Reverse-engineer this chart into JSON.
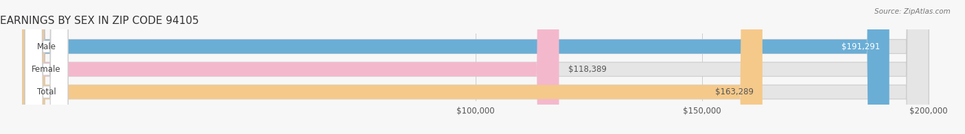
{
  "title": "EARNINGS BY SEX IN ZIP CODE 94105",
  "source_text": "Source: ZipAtlas.com",
  "categories": [
    "Male",
    "Female",
    "Total"
  ],
  "values": [
    191291,
    118389,
    163289
  ],
  "bar_colors": [
    "#6aaed6",
    "#f4b8cc",
    "#f5c98a"
  ],
  "value_labels": [
    "$191,291",
    "$118,389",
    "$163,289"
  ],
  "value_label_inside": [
    true,
    false,
    true
  ],
  "value_label_colors_inside": [
    "#ffffff",
    "#555555",
    "#555555"
  ],
  "xmin": 100000,
  "xmax": 200000,
  "xticks": [
    100000,
    150000,
    200000
  ],
  "xtick_labels": [
    "$100,000",
    "$150,000",
    "$200,000"
  ],
  "background_color": "#f7f7f7",
  "bar_bg_color": "#e5e5e5",
  "title_fontsize": 11,
  "tick_fontsize": 8.5,
  "bar_height": 0.62,
  "bar_label_fontsize": 8.5,
  "category_fontsize": 8.5
}
